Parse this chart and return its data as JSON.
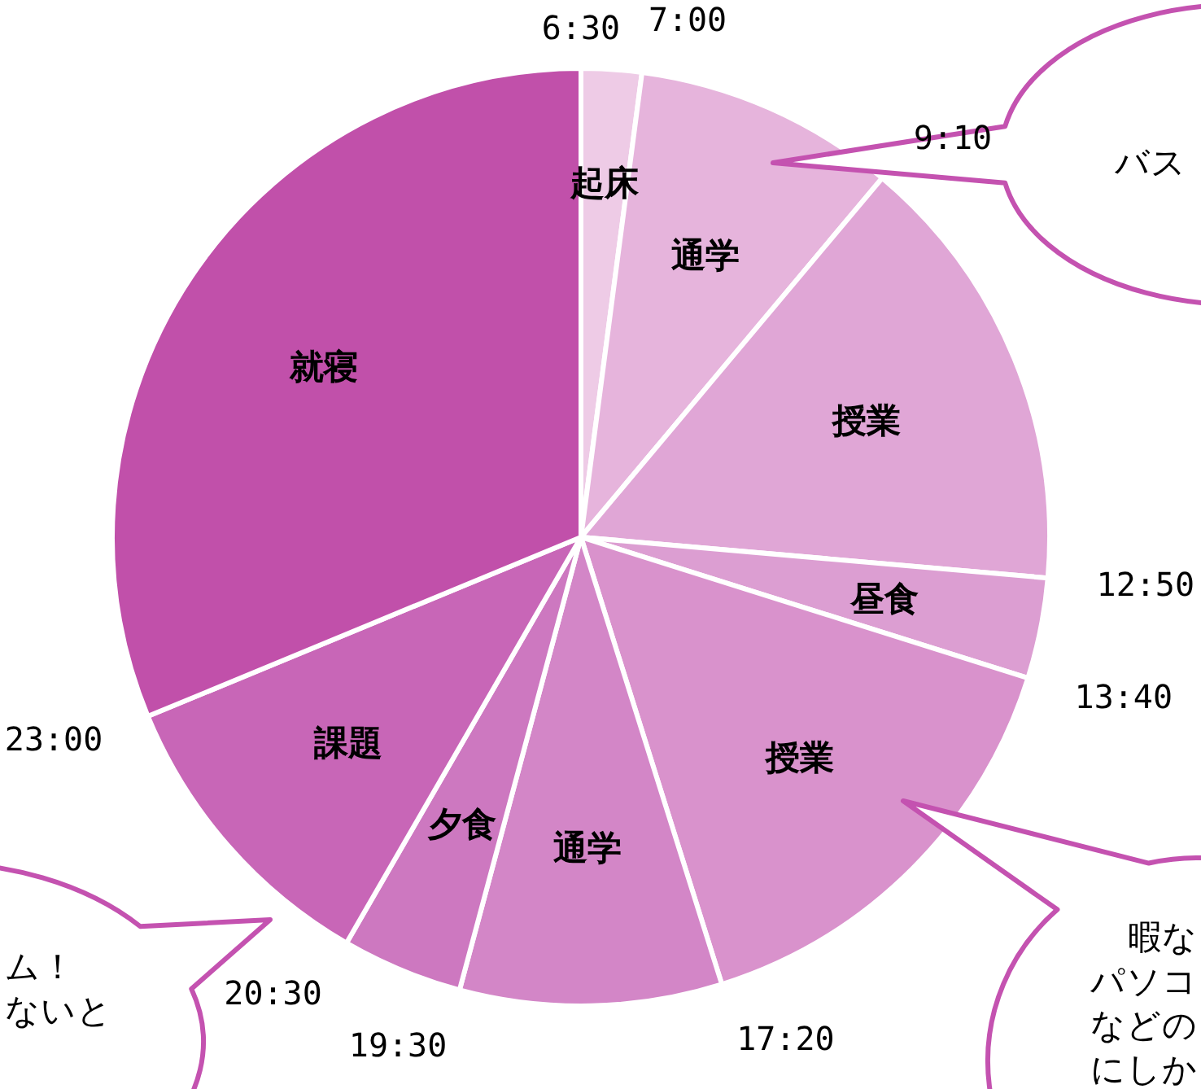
{
  "chart_data": {
    "type": "pie",
    "categories": [
      "起床",
      "通学",
      "授業",
      "昼食",
      "授業",
      "通学",
      "夕食",
      "課題",
      "就寝"
    ],
    "values": [
      2.08,
      9.03,
      15.28,
      3.47,
      15.28,
      9.03,
      4.17,
      10.42,
      31.24
    ],
    "colors": [
      "#eecbe6",
      "#e6b4dc",
      "#e0a6d6",
      "#dc9ed2",
      "#d992cc",
      "#d386c7",
      "#cd78c0",
      "#c866b7",
      "#c150aa"
    ],
    "annotations": [
      "6:30",
      "7:00",
      "9:10",
      "12:50",
      "13:40",
      "17:20",
      "19:30",
      "20:30",
      "23:00",
      "バス",
      "ム！",
      "ないと",
      "暇な",
      "パソコ",
      "などの",
      "にしか"
    ]
  }
}
